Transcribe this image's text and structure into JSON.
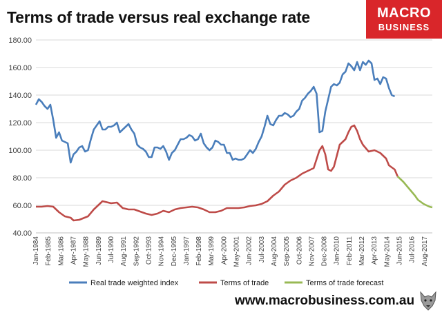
{
  "logo": {
    "line1": "MACRO",
    "line2": "BUSINESS"
  },
  "footer": {
    "url": "www.macrobusiness.com.au"
  },
  "colors": {
    "real_twi": "#4a7ebb",
    "tot": "#be4b48",
    "tot_forecast": "#98b954",
    "grid": "#d9d9d9",
    "axis_text": "#404040"
  },
  "chart_data": {
    "type": "line",
    "title": "Terms of trade versus real exchange rate",
    "xlabel": "",
    "ylabel": "",
    "ylim": [
      40,
      180
    ],
    "yticks": [
      "40.00",
      "60.00",
      "80.00",
      "100.00",
      "120.00",
      "140.00",
      "160.00",
      "180.00"
    ],
    "x_range": [
      1984.0,
      2018.25
    ],
    "x_tick_labels": [
      "Jan-1984",
      "Feb-1985",
      "Mar-1986",
      "Apr-1987",
      "May-1988",
      "Jun-1989",
      "Jul-1990",
      "Aug-1991",
      "Sep-1992",
      "Oct-1993",
      "Nov-1994",
      "Dec-1995",
      "Jan-1997",
      "Feb-1998",
      "Mar-1999",
      "Apr-2000",
      "May-2001",
      "Jun-2002",
      "Jul-2003",
      "Aug-2004",
      "Sep-2005",
      "Oct-2006",
      "Nov-2007",
      "Dec-2008",
      "Jan-2010",
      "Feb-2011",
      "Mar-2012",
      "Apr-2013",
      "May-2014",
      "Jun-2015",
      "Jul-2016",
      "Aug-2017"
    ],
    "x_tick_positions": [
      1984.0,
      1985.08,
      1986.17,
      1987.25,
      1988.33,
      1989.42,
      1990.5,
      1991.58,
      1992.67,
      1993.75,
      1994.83,
      1995.92,
      1997.0,
      1998.08,
      1999.17,
      2000.25,
      2001.33,
      2002.42,
      2003.5,
      2004.58,
      2005.67,
      2006.75,
      2007.83,
      2008.92,
      2010.0,
      2011.08,
      2012.17,
      2013.25,
      2014.33,
      2015.42,
      2016.5,
      2017.58
    ],
    "legend_position": "bottom",
    "grid": "horizontal",
    "series": [
      {
        "name": "Real trade weighted index",
        "color": "#4a7ebb",
        "points": [
          [
            1984.0,
            133
          ],
          [
            1984.25,
            137
          ],
          [
            1984.5,
            135
          ],
          [
            1984.75,
            132
          ],
          [
            1985.0,
            130
          ],
          [
            1985.25,
            133
          ],
          [
            1985.5,
            122
          ],
          [
            1985.75,
            109
          ],
          [
            1986.0,
            113
          ],
          [
            1986.25,
            107
          ],
          [
            1986.5,
            106
          ],
          [
            1986.75,
            105
          ],
          [
            1987.0,
            91
          ],
          [
            1987.25,
            97
          ],
          [
            1987.5,
            99
          ],
          [
            1987.75,
            102
          ],
          [
            1988.0,
            103
          ],
          [
            1988.25,
            99
          ],
          [
            1988.5,
            100
          ],
          [
            1988.75,
            108
          ],
          [
            1989.0,
            115
          ],
          [
            1989.25,
            118
          ],
          [
            1989.5,
            121
          ],
          [
            1989.75,
            115
          ],
          [
            1990.0,
            115
          ],
          [
            1990.25,
            117
          ],
          [
            1990.5,
            117
          ],
          [
            1990.75,
            118
          ],
          [
            1991.0,
            120
          ],
          [
            1991.25,
            113
          ],
          [
            1991.5,
            115
          ],
          [
            1991.75,
            117
          ],
          [
            1992.0,
            119
          ],
          [
            1992.25,
            115
          ],
          [
            1992.5,
            112
          ],
          [
            1992.75,
            104
          ],
          [
            1993.0,
            102
          ],
          [
            1993.25,
            101
          ],
          [
            1993.5,
            99
          ],
          [
            1993.75,
            95
          ],
          [
            1994.0,
            95
          ],
          [
            1994.25,
            102
          ],
          [
            1994.5,
            102
          ],
          [
            1994.75,
            101
          ],
          [
            1995.0,
            103
          ],
          [
            1995.25,
            99
          ],
          [
            1995.5,
            93
          ],
          [
            1995.75,
            98
          ],
          [
            1996.0,
            100
          ],
          [
            1996.25,
            104
          ],
          [
            1996.5,
            108
          ],
          [
            1996.75,
            108
          ],
          [
            1997.0,
            109
          ],
          [
            1997.25,
            111
          ],
          [
            1997.5,
            110
          ],
          [
            1997.75,
            107
          ],
          [
            1998.0,
            108
          ],
          [
            1998.25,
            112
          ],
          [
            1998.5,
            105
          ],
          [
            1998.75,
            102
          ],
          [
            1999.0,
            100
          ],
          [
            1999.25,
            102
          ],
          [
            1999.5,
            107
          ],
          [
            1999.75,
            106
          ],
          [
            2000.0,
            104
          ],
          [
            2000.25,
            104
          ],
          [
            2000.5,
            98
          ],
          [
            2000.75,
            98
          ],
          [
            2001.0,
            93
          ],
          [
            2001.25,
            94
          ],
          [
            2001.5,
            93
          ],
          [
            2001.75,
            93
          ],
          [
            2002.0,
            94
          ],
          [
            2002.25,
            97
          ],
          [
            2002.5,
            100
          ],
          [
            2002.75,
            98
          ],
          [
            2003.0,
            101
          ],
          [
            2003.25,
            106
          ],
          [
            2003.5,
            110
          ],
          [
            2003.75,
            117
          ],
          [
            2004.0,
            125
          ],
          [
            2004.25,
            119
          ],
          [
            2004.5,
            118
          ],
          [
            2004.75,
            122
          ],
          [
            2005.0,
            125
          ],
          [
            2005.25,
            125
          ],
          [
            2005.5,
            127
          ],
          [
            2005.75,
            126
          ],
          [
            2006.0,
            124
          ],
          [
            2006.25,
            125
          ],
          [
            2006.5,
            128
          ],
          [
            2006.75,
            130
          ],
          [
            2007.0,
            136
          ],
          [
            2007.25,
            138
          ],
          [
            2007.5,
            141
          ],
          [
            2007.75,
            143
          ],
          [
            2008.0,
            146
          ],
          [
            2008.25,
            141
          ],
          [
            2008.5,
            113
          ],
          [
            2008.75,
            114
          ],
          [
            2009.0,
            128
          ],
          [
            2009.25,
            137
          ],
          [
            2009.5,
            146
          ],
          [
            2009.75,
            148
          ],
          [
            2010.0,
            147
          ],
          [
            2010.25,
            149
          ],
          [
            2010.5,
            155
          ],
          [
            2010.75,
            157
          ],
          [
            2011.0,
            163
          ],
          [
            2011.25,
            161
          ],
          [
            2011.5,
            158
          ],
          [
            2011.75,
            164
          ],
          [
            2012.0,
            158
          ],
          [
            2012.25,
            164
          ],
          [
            2012.5,
            162
          ],
          [
            2012.75,
            165
          ],
          [
            2013.0,
            163
          ],
          [
            2013.25,
            151
          ],
          [
            2013.5,
            152
          ],
          [
            2013.75,
            148
          ],
          [
            2014.0,
            153
          ],
          [
            2014.25,
            152
          ],
          [
            2014.5,
            145
          ],
          [
            2014.75,
            140
          ],
          [
            2015.0,
            139
          ]
        ]
      },
      {
        "name": "Terms of trade",
        "color": "#be4b48",
        "points": [
          [
            1984.0,
            59
          ],
          [
            1984.5,
            59
          ],
          [
            1985.0,
            59.5
          ],
          [
            1985.5,
            59
          ],
          [
            1986.0,
            55
          ],
          [
            1986.5,
            52
          ],
          [
            1987.0,
            51
          ],
          [
            1987.25,
            49
          ],
          [
            1987.75,
            49.5
          ],
          [
            1988.5,
            52
          ],
          [
            1989.0,
            57
          ],
          [
            1989.5,
            61
          ],
          [
            1989.75,
            63
          ],
          [
            1990.0,
            62.5
          ],
          [
            1990.5,
            61.5
          ],
          [
            1991.0,
            62
          ],
          [
            1991.25,
            60
          ],
          [
            1991.5,
            58
          ],
          [
            1992.0,
            57
          ],
          [
            1992.5,
            57
          ],
          [
            1993.0,
            55.5
          ],
          [
            1993.5,
            54
          ],
          [
            1994.0,
            53
          ],
          [
            1994.5,
            54
          ],
          [
            1995.0,
            56
          ],
          [
            1995.5,
            55
          ],
          [
            1996.0,
            57
          ],
          [
            1996.5,
            58
          ],
          [
            1997.0,
            58.5
          ],
          [
            1997.5,
            59
          ],
          [
            1998.0,
            58.5
          ],
          [
            1998.5,
            57
          ],
          [
            1999.0,
            55
          ],
          [
            1999.5,
            55
          ],
          [
            2000.0,
            56
          ],
          [
            2000.5,
            58
          ],
          [
            2001.0,
            58
          ],
          [
            2001.5,
            58
          ],
          [
            2002.0,
            58.5
          ],
          [
            2002.5,
            59.5
          ],
          [
            2003.0,
            60
          ],
          [
            2003.5,
            61
          ],
          [
            2004.0,
            63
          ],
          [
            2004.5,
            67
          ],
          [
            2005.0,
            70
          ],
          [
            2005.5,
            75
          ],
          [
            2006.0,
            78
          ],
          [
            2006.5,
            80
          ],
          [
            2007.0,
            83
          ],
          [
            2007.5,
            85
          ],
          [
            2008.0,
            87
          ],
          [
            2008.5,
            100
          ],
          [
            2008.75,
            103
          ],
          [
            2009.0,
            97
          ],
          [
            2009.25,
            86
          ],
          [
            2009.5,
            85
          ],
          [
            2009.75,
            88
          ],
          [
            2010.0,
            96
          ],
          [
            2010.25,
            104
          ],
          [
            2010.75,
            108
          ],
          [
            2011.0,
            113
          ],
          [
            2011.25,
            117
          ],
          [
            2011.5,
            118
          ],
          [
            2011.75,
            114
          ],
          [
            2012.0,
            108
          ],
          [
            2012.25,
            104
          ],
          [
            2012.75,
            99
          ],
          [
            2013.25,
            100
          ],
          [
            2013.75,
            98
          ],
          [
            2014.25,
            94
          ],
          [
            2014.5,
            89
          ],
          [
            2015.0,
            86
          ],
          [
            2015.25,
            81
          ]
        ]
      },
      {
        "name": "Terms of trade forecast",
        "color": "#98b954",
        "points": [
          [
            2015.25,
            81
          ],
          [
            2015.75,
            77
          ],
          [
            2016.25,
            72
          ],
          [
            2016.75,
            67
          ],
          [
            2017.0,
            64
          ],
          [
            2017.5,
            61
          ],
          [
            2018.0,
            59
          ],
          [
            2018.25,
            58.5
          ]
        ]
      }
    ]
  }
}
